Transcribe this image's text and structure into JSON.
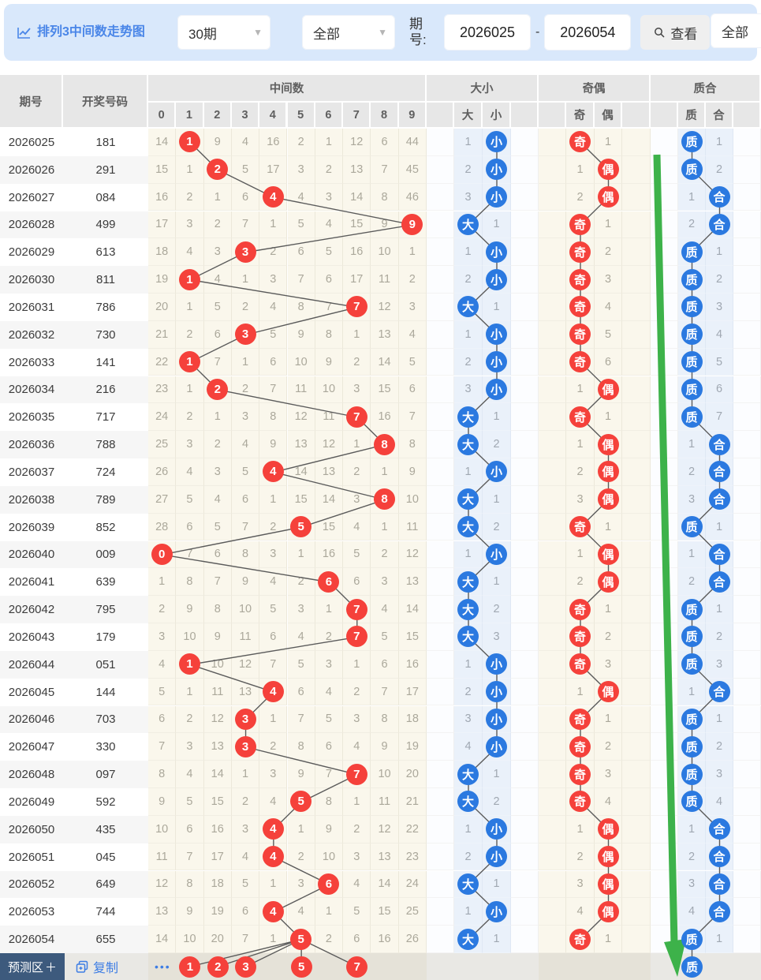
{
  "colors": {
    "red": "#f5413b",
    "blue": "#2b79e0",
    "green": "#3db24a",
    "title_blue": "#4a86e8",
    "trend_line": "#5b5b5b",
    "topbar_bg": "#d9e8fb"
  },
  "topbar": {
    "title": "排列3中间数走势图",
    "range_select": "30期",
    "filter_select": "全部",
    "issue_label": "期号:",
    "issue_from": "2026025",
    "dash": "-",
    "issue_to": "2026054",
    "view_button": "查看",
    "right_select": "全部"
  },
  "table_header": {
    "issue": "期号",
    "numbers": "开奖号码",
    "groups": [
      {
        "label": "中间数",
        "cols": [
          "0",
          "1",
          "2",
          "3",
          "4",
          "5",
          "6",
          "7",
          "8",
          "9"
        ]
      },
      {
        "label": "大小",
        "cols": [
          "",
          "大",
          "小",
          ""
        ]
      },
      {
        "label": "奇偶",
        "cols": [
          "",
          "奇",
          "偶",
          ""
        ]
      },
      {
        "label": "质合",
        "cols": [
          "",
          "质",
          "合",
          ""
        ]
      }
    ]
  },
  "rows": [
    {
      "issue": "2026025",
      "num": "181",
      "mid": [
        14,
        1,
        9,
        4,
        16,
        2,
        1,
        12,
        6,
        44
      ],
      "hit": 1,
      "dx": "小",
      "dxn": 1,
      "jo": "奇",
      "jon": 1,
      "zh": "质",
      "zhn": 1
    },
    {
      "issue": "2026026",
      "num": "291",
      "mid": [
        15,
        1,
        2,
        5,
        17,
        3,
        2,
        13,
        7,
        45
      ],
      "hit": 2,
      "dx": "小",
      "dxn": 2,
      "jo": "偶",
      "jon": 1,
      "zh": "质",
      "zhn": 2
    },
    {
      "issue": "2026027",
      "num": "084",
      "mid": [
        16,
        2,
        1,
        6,
        4,
        4,
        3,
        14,
        8,
        46
      ],
      "hit": 4,
      "dx": "小",
      "dxn": 3,
      "jo": "偶",
      "jon": 2,
      "zh": "合",
      "zhn": 1
    },
    {
      "issue": "2026028",
      "num": "499",
      "mid": [
        17,
        3,
        2,
        7,
        1,
        5,
        4,
        15,
        9,
        9
      ],
      "hit": 9,
      "dx": "大",
      "dxn": 1,
      "jo": "奇",
      "jon": 1,
      "zh": "合",
      "zhn": 2
    },
    {
      "issue": "2026029",
      "num": "613",
      "mid": [
        18,
        4,
        3,
        3,
        2,
        6,
        5,
        16,
        10,
        1
      ],
      "hit": 3,
      "dx": "小",
      "dxn": 1,
      "jo": "奇",
      "jon": 2,
      "zh": "质",
      "zhn": 1
    },
    {
      "issue": "2026030",
      "num": "811",
      "mid": [
        19,
        1,
        4,
        1,
        3,
        7,
        6,
        17,
        11,
        2
      ],
      "hit": 1,
      "dx": "小",
      "dxn": 2,
      "jo": "奇",
      "jon": 3,
      "zh": "质",
      "zhn": 2
    },
    {
      "issue": "2026031",
      "num": "786",
      "mid": [
        20,
        1,
        5,
        2,
        4,
        8,
        7,
        7,
        12,
        3
      ],
      "hit": 7,
      "dx": "大",
      "dxn": 1,
      "jo": "奇",
      "jon": 4,
      "zh": "质",
      "zhn": 3
    },
    {
      "issue": "2026032",
      "num": "730",
      "mid": [
        21,
        2,
        6,
        3,
        5,
        9,
        8,
        1,
        13,
        4
      ],
      "hit": 3,
      "dx": "小",
      "dxn": 1,
      "jo": "奇",
      "jon": 5,
      "zh": "质",
      "zhn": 4
    },
    {
      "issue": "2026033",
      "num": "141",
      "mid": [
        22,
        1,
        7,
        1,
        6,
        10,
        9,
        2,
        14,
        5
      ],
      "hit": 1,
      "dx": "小",
      "dxn": 2,
      "jo": "奇",
      "jon": 6,
      "zh": "质",
      "zhn": 5
    },
    {
      "issue": "2026034",
      "num": "216",
      "mid": [
        23,
        1,
        2,
        2,
        7,
        11,
        10,
        3,
        15,
        6
      ],
      "hit": 2,
      "dx": "小",
      "dxn": 3,
      "jo": "偶",
      "jon": 1,
      "zh": "质",
      "zhn": 6
    },
    {
      "issue": "2026035",
      "num": "717",
      "mid": [
        24,
        2,
        1,
        3,
        8,
        12,
        11,
        7,
        16,
        7
      ],
      "hit": 7,
      "dx": "大",
      "dxn": 1,
      "jo": "奇",
      "jon": 1,
      "zh": "质",
      "zhn": 7
    },
    {
      "issue": "2026036",
      "num": "788",
      "mid": [
        25,
        3,
        2,
        4,
        9,
        13,
        12,
        1,
        8,
        8
      ],
      "hit": 8,
      "dx": "大",
      "dxn": 2,
      "jo": "偶",
      "jon": 1,
      "zh": "合",
      "zhn": 1
    },
    {
      "issue": "2026037",
      "num": "724",
      "mid": [
        26,
        4,
        3,
        5,
        4,
        14,
        13,
        2,
        1,
        9
      ],
      "hit": 4,
      "dx": "小",
      "dxn": 1,
      "jo": "偶",
      "jon": 2,
      "zh": "合",
      "zhn": 2
    },
    {
      "issue": "2026038",
      "num": "789",
      "mid": [
        27,
        5,
        4,
        6,
        1,
        15,
        14,
        3,
        8,
        10
      ],
      "hit": 8,
      "dx": "大",
      "dxn": 1,
      "jo": "偶",
      "jon": 3,
      "zh": "合",
      "zhn": 3
    },
    {
      "issue": "2026039",
      "num": "852",
      "mid": [
        28,
        6,
        5,
        7,
        2,
        5,
        15,
        4,
        1,
        11
      ],
      "hit": 5,
      "dx": "大",
      "dxn": 2,
      "jo": "奇",
      "jon": 1,
      "zh": "质",
      "zhn": 1
    },
    {
      "issue": "2026040",
      "num": "009",
      "mid": [
        0,
        7,
        6,
        8,
        3,
        1,
        16,
        5,
        2,
        12
      ],
      "hit": 0,
      "dx": "小",
      "dxn": 1,
      "jo": "偶",
      "jon": 1,
      "zh": "合",
      "zhn": 1
    },
    {
      "issue": "2026041",
      "num": "639",
      "mid": [
        1,
        8,
        7,
        9,
        4,
        2,
        6,
        6,
        3,
        13
      ],
      "hit": 6,
      "dx": "大",
      "dxn": 1,
      "jo": "偶",
      "jon": 2,
      "zh": "合",
      "zhn": 2
    },
    {
      "issue": "2026042",
      "num": "795",
      "mid": [
        2,
        9,
        8,
        10,
        5,
        3,
        1,
        7,
        4,
        14
      ],
      "hit": 7,
      "dx": "大",
      "dxn": 2,
      "jo": "奇",
      "jon": 1,
      "zh": "质",
      "zhn": 1
    },
    {
      "issue": "2026043",
      "num": "179",
      "mid": [
        3,
        10,
        9,
        11,
        6,
        4,
        2,
        7,
        5,
        15
      ],
      "hit": 7,
      "dx": "大",
      "dxn": 3,
      "jo": "奇",
      "jon": 2,
      "zh": "质",
      "zhn": 2
    },
    {
      "issue": "2026044",
      "num": "051",
      "mid": [
        4,
        1,
        10,
        12,
        7,
        5,
        3,
        1,
        6,
        16
      ],
      "hit": 1,
      "dx": "小",
      "dxn": 1,
      "jo": "奇",
      "jon": 3,
      "zh": "质",
      "zhn": 3
    },
    {
      "issue": "2026045",
      "num": "144",
      "mid": [
        5,
        1,
        11,
        13,
        4,
        6,
        4,
        2,
        7,
        17
      ],
      "hit": 4,
      "dx": "小",
      "dxn": 2,
      "jo": "偶",
      "jon": 1,
      "zh": "合",
      "zhn": 1
    },
    {
      "issue": "2026046",
      "num": "703",
      "mid": [
        6,
        2,
        12,
        3,
        1,
        7,
        5,
        3,
        8,
        18
      ],
      "hit": 3,
      "dx": "小",
      "dxn": 3,
      "jo": "奇",
      "jon": 1,
      "zh": "质",
      "zhn": 1
    },
    {
      "issue": "2026047",
      "num": "330",
      "mid": [
        7,
        3,
        13,
        3,
        2,
        8,
        6,
        4,
        9,
        19
      ],
      "hit": 3,
      "dx": "小",
      "dxn": 4,
      "jo": "奇",
      "jon": 2,
      "zh": "质",
      "zhn": 2
    },
    {
      "issue": "2026048",
      "num": "097",
      "mid": [
        8,
        4,
        14,
        1,
        3,
        9,
        7,
        7,
        10,
        20
      ],
      "hit": 7,
      "dx": "大",
      "dxn": 1,
      "jo": "奇",
      "jon": 3,
      "zh": "质",
      "zhn": 3
    },
    {
      "issue": "2026049",
      "num": "592",
      "mid": [
        9,
        5,
        15,
        2,
        4,
        5,
        8,
        1,
        11,
        21
      ],
      "hit": 5,
      "dx": "大",
      "dxn": 2,
      "jo": "奇",
      "jon": 4,
      "zh": "质",
      "zhn": 4
    },
    {
      "issue": "2026050",
      "num": "435",
      "mid": [
        10,
        6,
        16,
        3,
        4,
        1,
        9,
        2,
        12,
        22
      ],
      "hit": 4,
      "dx": "小",
      "dxn": 1,
      "jo": "偶",
      "jon": 1,
      "zh": "合",
      "zhn": 1
    },
    {
      "issue": "2026051",
      "num": "045",
      "mid": [
        11,
        7,
        17,
        4,
        4,
        2,
        10,
        3,
        13,
        23
      ],
      "hit": 4,
      "dx": "小",
      "dxn": 2,
      "jo": "偶",
      "jon": 2,
      "zh": "合",
      "zhn": 2
    },
    {
      "issue": "2026052",
      "num": "649",
      "mid": [
        12,
        8,
        18,
        5,
        1,
        3,
        6,
        4,
        14,
        24
      ],
      "hit": 6,
      "dx": "大",
      "dxn": 1,
      "jo": "偶",
      "jon": 3,
      "zh": "合",
      "zhn": 3
    },
    {
      "issue": "2026053",
      "num": "744",
      "mid": [
        13,
        9,
        19,
        6,
        4,
        4,
        1,
        5,
        15,
        25
      ],
      "hit": 4,
      "dx": "小",
      "dxn": 1,
      "jo": "偶",
      "jon": 4,
      "zh": "合",
      "zhn": 4
    },
    {
      "issue": "2026054",
      "num": "655",
      "mid": [
        14,
        10,
        20,
        7,
        1,
        5,
        2,
        6,
        16,
        26
      ],
      "hit": 5,
      "dx": "大",
      "dxn": 1,
      "jo": "奇",
      "jon": 1,
      "zh": "质",
      "zhn": 1
    }
  ],
  "prediction": {
    "button": "预测区",
    "button_plus": "＋",
    "copy": "复制",
    "more": "•••",
    "mid_circles": [
      1,
      2,
      3,
      5,
      7
    ],
    "zh_circle": "质"
  }
}
